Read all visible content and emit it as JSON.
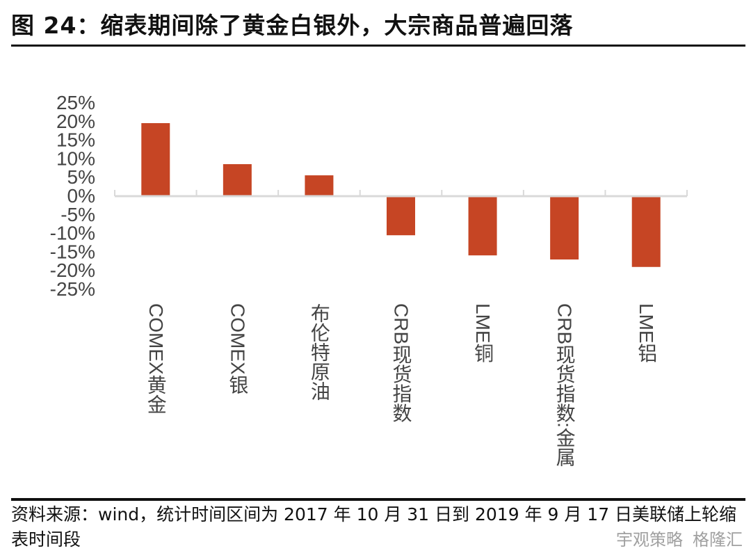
{
  "title": "图 24：缩表期间除了黄金白银外，大宗商品普遍回落",
  "chart_data": {
    "type": "bar",
    "title": "图 24：缩表期间除了黄金白银外，大宗商品普遍回落",
    "categories": [
      "COMEX黄金",
      "COMEX银",
      "布伦特原油",
      "CRB现货指数",
      "LME铜",
      "CRB现货指数:金属",
      "LME铝"
    ],
    "values": [
      19.4,
      8.4,
      5.4,
      -10.3,
      -15.7,
      -16.8,
      -18.8
    ],
    "unit": "%",
    "ylim": [
      -25,
      25
    ],
    "yticks": [
      25,
      20,
      15,
      10,
      5,
      0,
      -5,
      -10,
      -15,
      -20,
      -25
    ],
    "ytick_labels": [
      "25%",
      "20%",
      "15%",
      "10%",
      "5%",
      "0%",
      "-5%",
      "-10%",
      "-15%",
      "-20%",
      "-25%"
    ],
    "xlabel": "",
    "ylabel": "",
    "grid": false,
    "legend": "none",
    "color": "#c64524"
  },
  "note": "资料来源：wind，统计时间区间为 2017 年 10 月 31 日到 2019 年 9 月 17 日美联储上轮缩表时间段",
  "watermark": [
    "宇观策略",
    "格隆汇"
  ]
}
